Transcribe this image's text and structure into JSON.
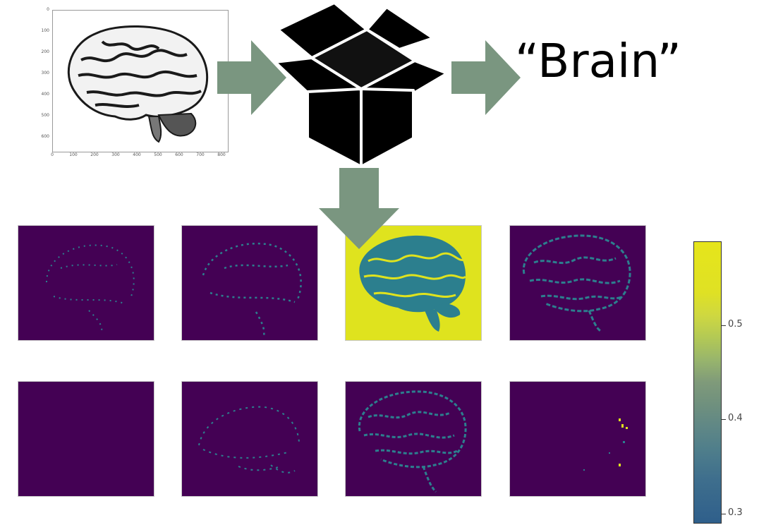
{
  "input_plot": {
    "y_ticks": [
      "0",
      "100",
      "200",
      "300",
      "400",
      "500",
      "600"
    ],
    "x_ticks": [
      "0",
      "100",
      "200",
      "300",
      "400",
      "500",
      "600",
      "700",
      "800"
    ]
  },
  "output": {
    "text": "“Brain”"
  },
  "colorbar": {
    "labels": [
      "0.5",
      "0.4",
      "0.3"
    ]
  },
  "colors": {
    "arrow": "#7a9680",
    "panel_dark": "#440154",
    "panel_bright": "#dfe31e",
    "feature": "#2c7f8e"
  }
}
